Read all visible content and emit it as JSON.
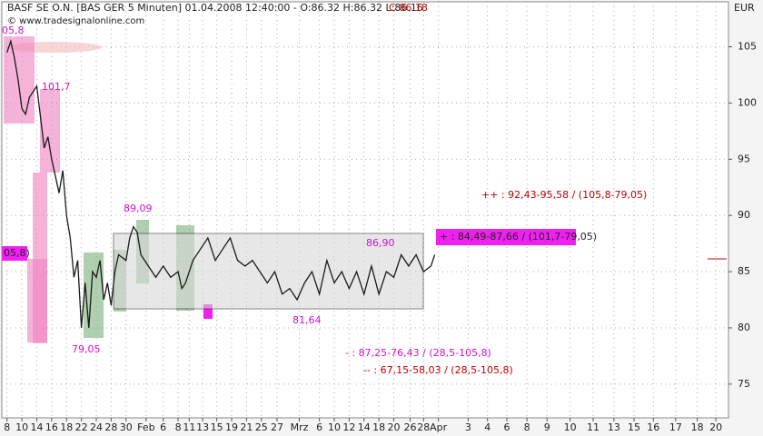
{
  "chart_data": {
    "type": "line",
    "title": "BASF SE O.N. [BAS GER  5 Minuten] 01.04.2008 12:40:00 - O:86.32 H:86.32 L:86.16",
    "title_close": "C:86.18",
    "subtitle": "© www.tradesignalonline.com",
    "y_axis_label": "EUR",
    "x": [
      0,
      0.5,
      1,
      1.5,
      2,
      2.5,
      3,
      3.5,
      4,
      5,
      5.5,
      6,
      7,
      7.5,
      8,
      8.5,
      9,
      9.5,
      10,
      10.5,
      11,
      11.5,
      12,
      12.5,
      13,
      13.5,
      14,
      14.5,
      15,
      16,
      16.5,
      17,
      17.5,
      18,
      19,
      20,
      21,
      22,
      23,
      23.5,
      24,
      25,
      26,
      27,
      28,
      29,
      30,
      31,
      32,
      33,
      34,
      35,
      36,
      37,
      38,
      39,
      40,
      41,
      42,
      43,
      44,
      45,
      46,
      47,
      48,
      49,
      50,
      51,
      52,
      53,
      54,
      55,
      56,
      57,
      57.5
    ],
    "series": [
      {
        "name": "BASF",
        "color": "#1a1a1a",
        "values": [
          104.5,
          105.5,
          104,
          102,
          99.5,
          99,
          100.5,
          101,
          101.5,
          96,
          97,
          95,
          92,
          94,
          90,
          88,
          84.5,
          86,
          80,
          84,
          80,
          85,
          84.5,
          86,
          82.5,
          84,
          82,
          85,
          86.5,
          86,
          88,
          89,
          88.5,
          86.5,
          85.5,
          84.5,
          85.5,
          84.5,
          85,
          83.5,
          84,
          86,
          87,
          88,
          86,
          87,
          88,
          86,
          85.5,
          86,
          85,
          84,
          85,
          83,
          83.5,
          82.5,
          84,
          85,
          83,
          86,
          84,
          85,
          83.5,
          85,
          83,
          85.5,
          83,
          85,
          84.5,
          86.5,
          85.5,
          86.5,
          85,
          85.5,
          86.5
        ]
      }
    ],
    "xlim": [
      -0.7,
      97
    ],
    "xticks": [
      {
        "value": 0,
        "label": "8"
      },
      {
        "value": 2,
        "label": "10"
      },
      {
        "value": 4,
        "label": "14"
      },
      {
        "value": 6,
        "label": "16"
      },
      {
        "value": 8,
        "label": "18"
      },
      {
        "value": 10,
        "label": "22"
      },
      {
        "value": 12,
        "label": "24"
      },
      {
        "value": 14,
        "label": "28"
      },
      {
        "value": 16,
        "label": "30"
      },
      {
        "value": 18.7,
        "label": "Feb"
      },
      {
        "value": 21,
        "label": "6"
      },
      {
        "value": 23,
        "label": "8"
      },
      {
        "value": 24.5,
        "label": "11"
      },
      {
        "value": 26.3,
        "label": "13"
      },
      {
        "value": 28.2,
        "label": "15"
      },
      {
        "value": 30.2,
        "label": "19"
      },
      {
        "value": 32.2,
        "label": "21"
      },
      {
        "value": 34.2,
        "label": "25"
      },
      {
        "value": 36.3,
        "label": "27"
      },
      {
        "value": 39.3,
        "label": "Mrz"
      },
      {
        "value": 42,
        "label": "6"
      },
      {
        "value": 44,
        "label": "10"
      },
      {
        "value": 46,
        "label": "12"
      },
      {
        "value": 48,
        "label": "14"
      },
      {
        "value": 50,
        "label": "18"
      },
      {
        "value": 52,
        "label": "20"
      },
      {
        "value": 54.2,
        "label": "26"
      },
      {
        "value": 56,
        "label": "28"
      },
      {
        "value": 58,
        "label": "Apr"
      },
      {
        "value": 62,
        "label": "3"
      },
      {
        "value": 64.6,
        "label": "4"
      },
      {
        "value": 67.2,
        "label": "6"
      },
      {
        "value": 69.9,
        "label": "8"
      },
      {
        "value": 72.6,
        "label": "9"
      },
      {
        "value": 75.7,
        "label": "10"
      },
      {
        "value": 78.8,
        "label": "11"
      },
      {
        "value": 81.6,
        "label": "13"
      },
      {
        "value": 84.3,
        "label": "15"
      },
      {
        "value": 86.9,
        "label": "16"
      },
      {
        "value": 89.9,
        "label": "17"
      },
      {
        "value": 92.8,
        "label": "18"
      },
      {
        "value": 95.3,
        "label": "20"
      }
    ],
    "ylim": [
      72,
      109
    ],
    "yticks": [
      75,
      80,
      85,
      90,
      95,
      100,
      105
    ],
    "grid": true,
    "annotations": [
      "05,8",
      "101,7",
      "89,09",
      "79,05",
      "86,90",
      "81,64",
      "05,8)",
      "++ : 92,43-95,58 / (105,8-79,05)",
      "+ : 84,49-87,66 / (101,7-79,05)",
      "- : 87,25-76,43 / (28,5-105,8)",
      "-- : 67,15-58,03 / (28,5-105,8)"
    ]
  }
}
